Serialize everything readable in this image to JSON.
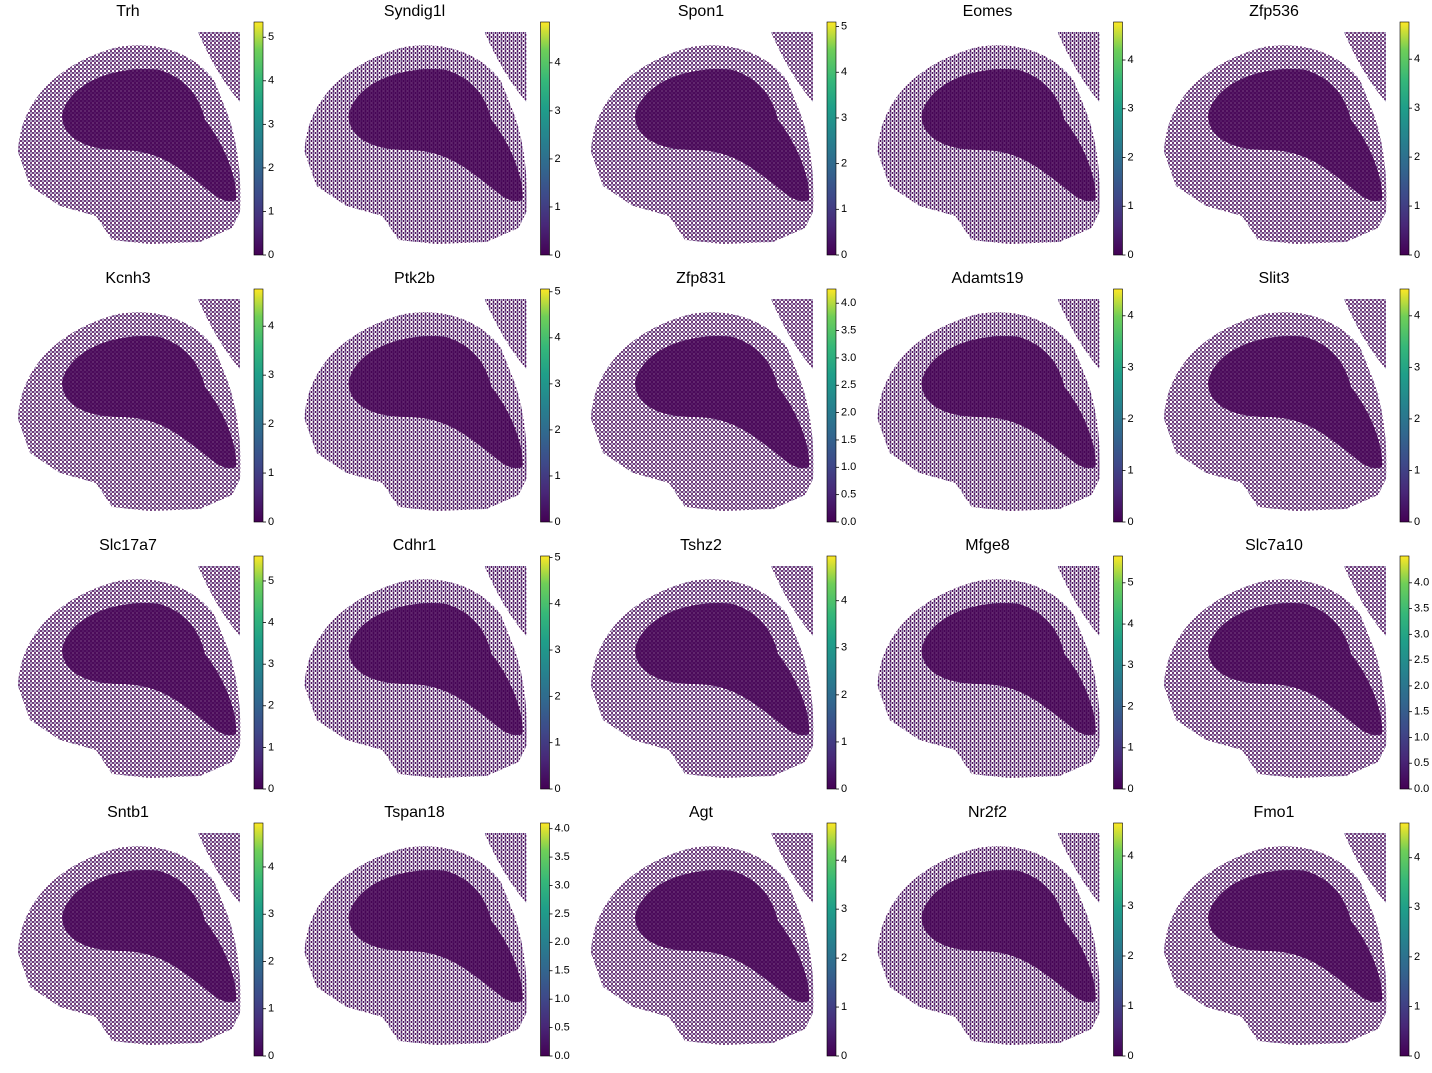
{
  "chart_data": [
    {
      "type": "spatial",
      "title": "Trh",
      "cmap": "viridis",
      "ylim": [
        0,
        5.35
      ],
      "yticks": [
        0,
        1,
        2,
        3,
        4,
        5
      ]
    },
    {
      "type": "spatial",
      "title": "Syndig1l",
      "cmap": "viridis",
      "ylim": [
        0,
        4.85
      ],
      "yticks": [
        0,
        1,
        2,
        3,
        4
      ]
    },
    {
      "type": "spatial",
      "title": "Spon1",
      "cmap": "viridis",
      "ylim": [
        0,
        5.1
      ],
      "yticks": [
        0,
        1,
        2,
        3,
        4,
        5
      ]
    },
    {
      "type": "spatial",
      "title": "Eomes",
      "cmap": "viridis",
      "ylim": [
        0,
        4.78
      ],
      "yticks": [
        0,
        1,
        2,
        3,
        4
      ]
    },
    {
      "type": "spatial",
      "title": "Zfp536",
      "cmap": "viridis",
      "ylim": [
        0,
        4.76
      ],
      "yticks": [
        0,
        1,
        2,
        3,
        4
      ]
    },
    {
      "type": "spatial",
      "title": "Kcnh3",
      "cmap": "viridis",
      "ylim": [
        0,
        4.76
      ],
      "yticks": [
        0,
        1,
        2,
        3,
        4
      ]
    },
    {
      "type": "spatial",
      "title": "Ptk2b",
      "cmap": "viridis",
      "ylim": [
        0,
        5.06
      ],
      "yticks": [
        0,
        1,
        2,
        3,
        4,
        5
      ]
    },
    {
      "type": "spatial",
      "title": "Zfp831",
      "cmap": "viridis",
      "ylim": [
        0,
        4.26
      ],
      "yticks": [
        {
          "value": 0,
          "label": "0.0"
        },
        0.5,
        {
          "value": 1,
          "label": "1.0"
        },
        1.5,
        {
          "value": 2,
          "label": "2.0"
        },
        2.5,
        {
          "value": 3,
          "label": "3.0"
        },
        3.5,
        {
          "value": 4,
          "label": "4.0"
        }
      ]
    },
    {
      "type": "spatial",
      "title": "Adamts19",
      "cmap": "viridis",
      "ylim": [
        0,
        4.52
      ],
      "yticks": [
        0,
        1,
        2,
        3,
        4
      ]
    },
    {
      "type": "spatial",
      "title": "Slit3",
      "cmap": "viridis",
      "ylim": [
        0,
        4.52
      ],
      "yticks": [
        0,
        1,
        2,
        3,
        4
      ]
    },
    {
      "type": "spatial",
      "title": "Slc17a7",
      "cmap": "viridis",
      "ylim": [
        0,
        5.6
      ],
      "yticks": [
        0,
        1,
        2,
        3,
        4,
        5
      ]
    },
    {
      "type": "spatial",
      "title": "Cdhr1",
      "cmap": "viridis",
      "ylim": [
        0,
        5.03
      ],
      "yticks": [
        0,
        1,
        2,
        3,
        4,
        5
      ]
    },
    {
      "type": "spatial",
      "title": "Tshz2",
      "cmap": "viridis",
      "ylim": [
        0,
        4.95
      ],
      "yticks": [
        0,
        1,
        2,
        3,
        4
      ]
    },
    {
      "type": "spatial",
      "title": "Mfge8",
      "cmap": "viridis",
      "ylim": [
        0,
        5.65
      ],
      "yticks": [
        0,
        1,
        2,
        3,
        4,
        5
      ]
    },
    {
      "type": "spatial",
      "title": "Slc7a10",
      "cmap": "viridis",
      "ylim": [
        0,
        4.52
      ],
      "yticks": [
        {
          "value": 0,
          "label": "0.0"
        },
        0.5,
        {
          "value": 1,
          "label": "1.0"
        },
        1.5,
        {
          "value": 2,
          "label": "2.0"
        },
        2.5,
        {
          "value": 3,
          "label": "3.0"
        },
        3.5,
        {
          "value": 4,
          "label": "4.0"
        }
      ]
    },
    {
      "type": "spatial",
      "title": "Sntb1",
      "cmap": "viridis",
      "ylim": [
        0,
        4.93
      ],
      "yticks": [
        0,
        1,
        2,
        3,
        4
      ]
    },
    {
      "type": "spatial",
      "title": "Tspan18",
      "cmap": "viridis",
      "ylim": [
        0,
        4.1
      ],
      "yticks": [
        {
          "value": 0,
          "label": "0.0"
        },
        0.5,
        {
          "value": 1,
          "label": "1.0"
        },
        1.5,
        {
          "value": 2,
          "label": "2.0"
        },
        2.5,
        {
          "value": 3,
          "label": "3.0"
        },
        3.5,
        {
          "value": 4,
          "label": "4.0"
        }
      ]
    },
    {
      "type": "spatial",
      "title": "Agt",
      "cmap": "viridis",
      "ylim": [
        0,
        4.76
      ],
      "yticks": [
        0,
        1,
        2,
        3,
        4
      ]
    },
    {
      "type": "spatial",
      "title": "Nr2f2",
      "cmap": "viridis",
      "ylim": [
        0,
        4.66
      ],
      "yticks": [
        0,
        1,
        2,
        3,
        4
      ]
    },
    {
      "type": "spatial",
      "title": "Fmo1",
      "cmap": "viridis",
      "ylim": [
        0,
        4.7
      ],
      "yticks": [
        0,
        1,
        2,
        3,
        4
      ]
    }
  ]
}
